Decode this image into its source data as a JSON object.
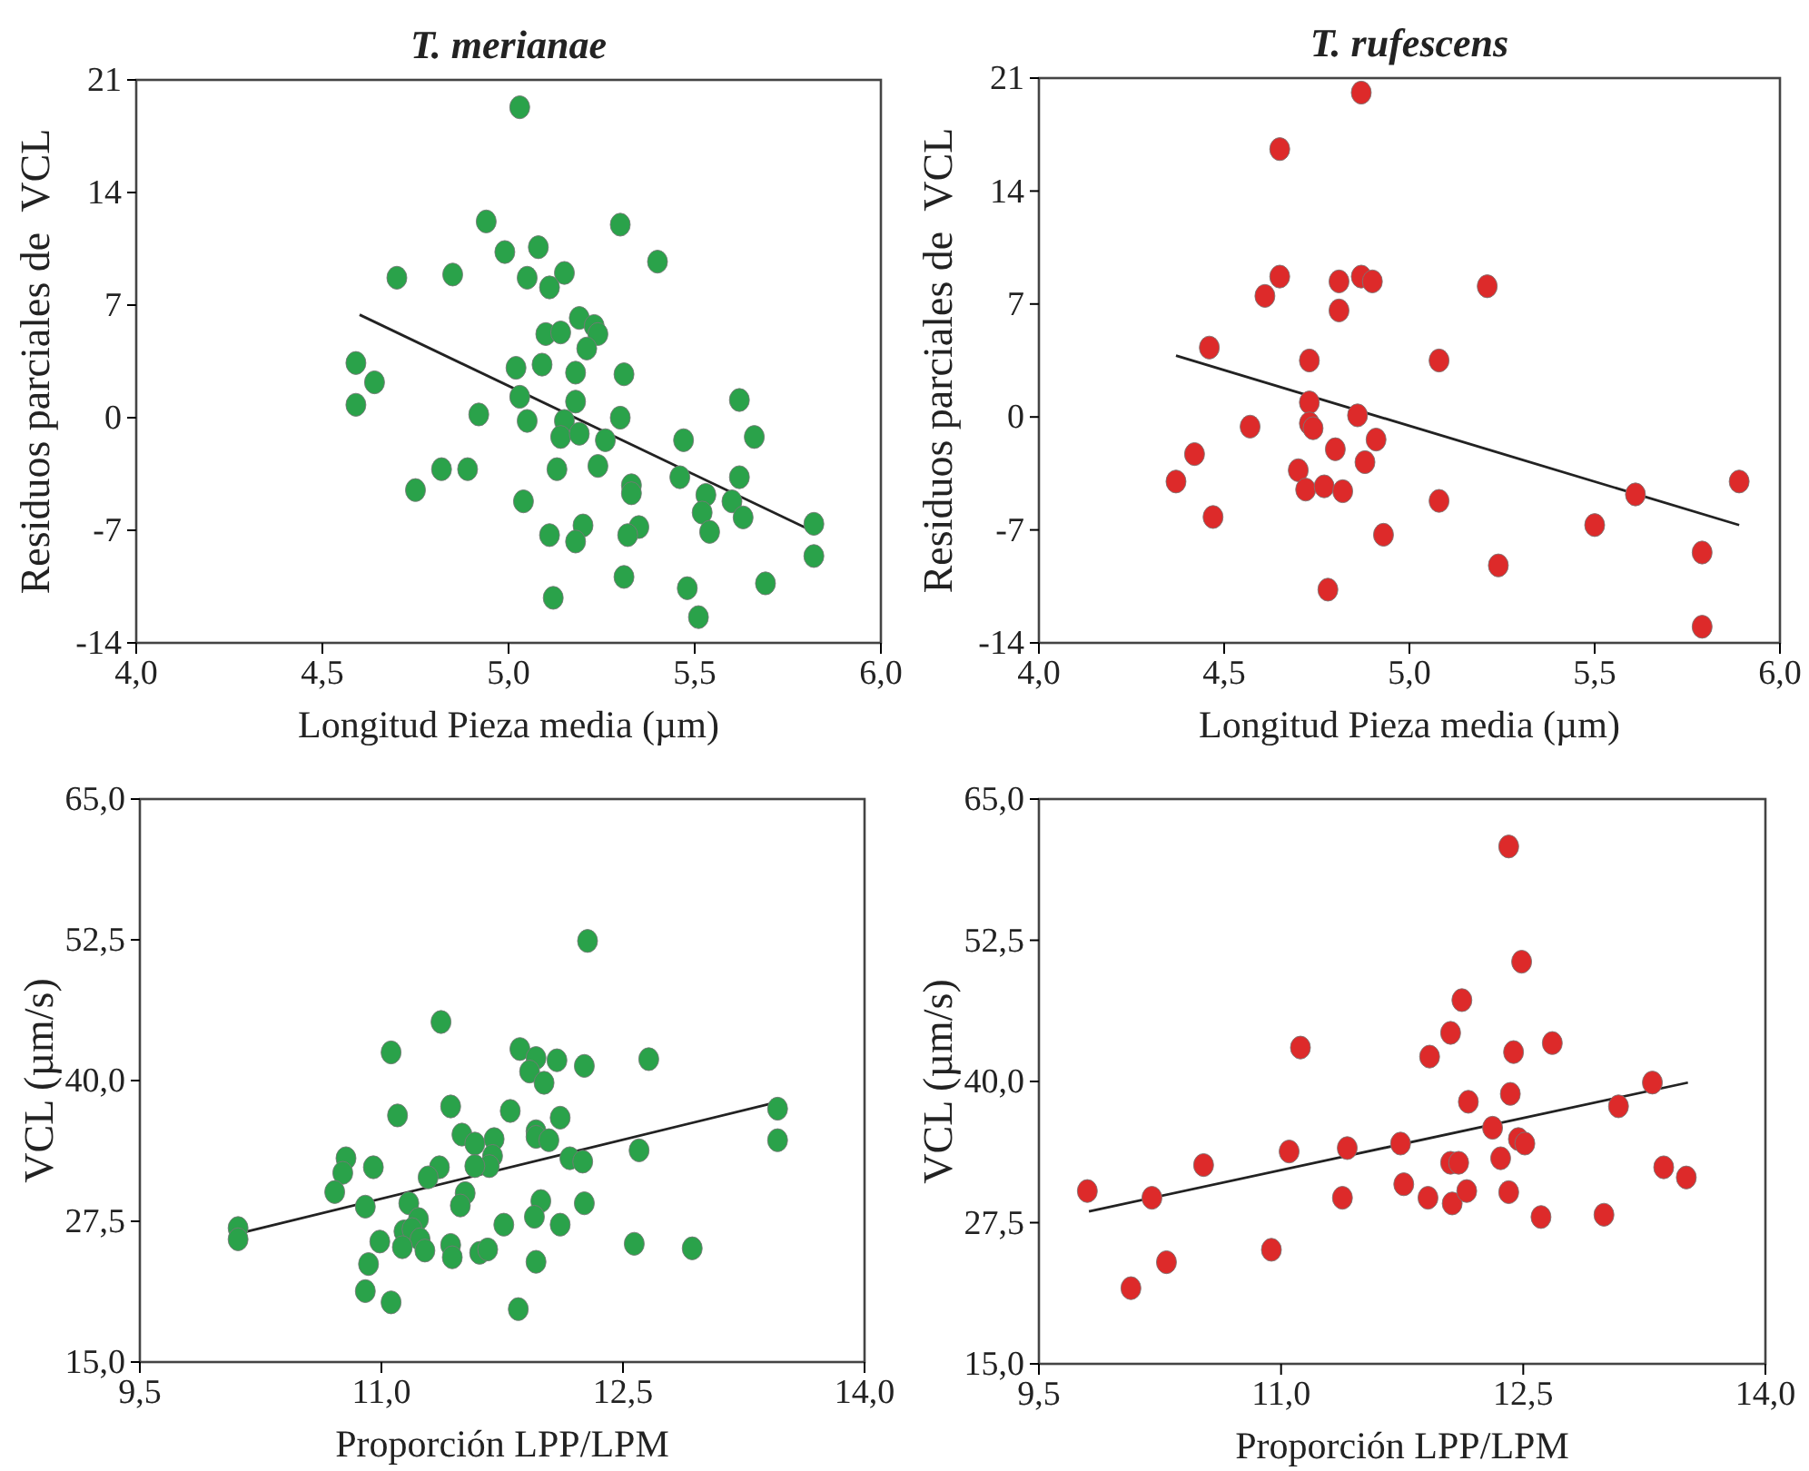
{
  "chart_data": [
    {
      "type": "scatter",
      "title": "T. merianae",
      "xlabel": "Longitud Pieza media (µm)",
      "ylabel": "Residuos parciales de  VCL",
      "xlim": [
        4,
        6
      ],
      "xticks": [
        {
          "value": 4,
          "label": "4,0"
        },
        {
          "value": 4.5,
          "label": "4,5"
        },
        {
          "value": 5,
          "label": "5,0"
        },
        {
          "value": 5.5,
          "label": "5,5"
        },
        {
          "value": 6,
          "label": "6,0"
        }
      ],
      "ylim": [
        -14,
        21
      ],
      "yticks": [
        -14,
        -7,
        0,
        7,
        14,
        21
      ],
      "series": [
        {
          "marker": "circle",
          "color": "#2aa24a",
          "x": [
            5.03,
            4.94,
            5.3,
            4.99,
            5.08,
            5.4,
            4.7,
            4.85,
            5.05,
            5.15,
            5.11,
            5.19,
            5.23,
            5.24,
            5.1,
            5.14,
            5.21,
            4.59,
            4.64,
            4.59,
            5.02,
            5.09,
            5.18,
            5.31,
            5.03,
            5.18,
            4.92,
            5.05,
            5.15,
            5.3,
            5.14,
            5.19,
            5.26,
            5.62,
            5.66,
            5.47,
            4.82,
            4.89,
            5.13,
            5.24,
            5.46,
            5.62,
            4.75,
            5.33,
            5.33,
            5.53,
            5.6,
            5.52,
            5.63,
            5.04,
            5.2,
            5.35,
            5.32,
            5.11,
            5.18,
            5.54,
            5.82,
            5.82,
            5.31,
            5.48,
            5.69,
            5.12,
            5.51
          ],
          "values": [
            19.3,
            12.2,
            12.0,
            10.3,
            10.6,
            9.7,
            8.7,
            8.9,
            8.7,
            9.0,
            8.1,
            6.2,
            5.7,
            5.2,
            5.2,
            5.3,
            4.3,
            3.4,
            2.2,
            0.8,
            3.1,
            3.3,
            2.8,
            2.7,
            1.3,
            1.0,
            0.2,
            -0.2,
            -0.2,
            0.0,
            -1.2,
            -1.0,
            -1.4,
            1.1,
            -1.2,
            -1.4,
            -3.2,
            -3.2,
            -3.2,
            -3.0,
            -3.7,
            -3.7,
            -4.5,
            -4.2,
            -4.7,
            -4.8,
            -5.2,
            -5.9,
            -6.2,
            -5.2,
            -6.7,
            -6.8,
            -7.3,
            -7.3,
            -7.7,
            -7.1,
            -6.6,
            -8.6,
            -9.9,
            -10.6,
            -10.3,
            -11.2,
            -12.4
          ]
        },
        {
          "type": "line",
          "color": "#222222",
          "x": [
            4.6,
            5.83
          ],
          "values": [
            6.4,
            -7.2
          ]
        }
      ]
    },
    {
      "type": "scatter",
      "title": "T. rufescens",
      "xlabel": "Longitud Pieza media (µm)",
      "ylabel": "Residuos parciales de  VCL",
      "xlim": [
        4,
        6
      ],
      "xticks": [
        {
          "value": 4,
          "label": "4,0"
        },
        {
          "value": 4.5,
          "label": "4,5"
        },
        {
          "value": 5,
          "label": "5,0"
        },
        {
          "value": 5.5,
          "label": "5,5"
        },
        {
          "value": 6,
          "label": "6,0"
        }
      ],
      "ylim": [
        -14,
        21
      ],
      "yticks": [
        -14,
        -7,
        0,
        7,
        14,
        21
      ],
      "series": [
        {
          "marker": "circle",
          "color": "#dd2a2a",
          "x": [
            4.87,
            4.65,
            4.65,
            4.61,
            4.81,
            4.87,
            4.9,
            4.81,
            5.21,
            4.46,
            4.73,
            5.08,
            4.73,
            4.86,
            4.57,
            4.73,
            4.74,
            4.91,
            4.8,
            4.88,
            4.42,
            4.37,
            4.7,
            4.72,
            4.77,
            4.82,
            5.08,
            5.61,
            5.89,
            4.47,
            4.93,
            5.5,
            5.24,
            5.79,
            4.78,
            5.79
          ],
          "values": [
            20.1,
            16.6,
            8.7,
            7.5,
            8.4,
            8.7,
            8.4,
            6.6,
            8.1,
            4.3,
            3.5,
            3.5,
            0.9,
            0.1,
            -0.6,
            -0.4,
            -0.7,
            -1.4,
            -2.0,
            -2.8,
            -2.3,
            -4.0,
            -3.3,
            -4.5,
            -4.3,
            -4.6,
            -5.2,
            -4.8,
            -4.0,
            -6.2,
            -7.3,
            -6.7,
            -9.2,
            -8.4,
            -10.7,
            -13.0
          ]
        },
        {
          "type": "line",
          "color": "#222222",
          "x": [
            4.37,
            5.89
          ],
          "values": [
            3.8,
            -6.7
          ]
        }
      ]
    },
    {
      "type": "scatter",
      "xlabel": "Proporción LPP/LPM",
      "ylabel": "VCL (µm/s)",
      "xlim": [
        9.5,
        14
      ],
      "xticks": [
        {
          "value": 9.5,
          "label": "9,5"
        },
        {
          "value": 11,
          "label": "11,0"
        },
        {
          "value": 12.5,
          "label": "12,5"
        },
        {
          "value": 14,
          "label": "14,0"
        }
      ],
      "ylim": [
        15,
        65
      ],
      "yticks": [
        {
          "value": 15,
          "label": "15,0"
        },
        {
          "value": 27.5,
          "label": "27,5"
        },
        {
          "value": 40,
          "label": "40,0"
        },
        {
          "value": 52.5,
          "label": "52,5"
        },
        {
          "value": 65,
          "label": "65,0"
        }
      ],
      "series": [
        {
          "marker": "circle",
          "color": "#2aa24a",
          "x": [
            10.11,
            10.11,
            12.28,
            11.37,
            11.06,
            11.86,
            11.96,
            12.09,
            11.92,
            12.01,
            12.26,
            12.66,
            13.46,
            13.46,
            11.1,
            11.43,
            11.8,
            12.11,
            11.5,
            11.58,
            11.7,
            11.69,
            11.67,
            11.58,
            11.96,
            11.96,
            12.04,
            12.17,
            12.25,
            12.6,
            10.78,
            10.76,
            10.95,
            10.71,
            11.36,
            11.29,
            11.52,
            11.49,
            10.9,
            11.17,
            11.99,
            11.95,
            12.26,
            11.76,
            12.11,
            11.23,
            11.14,
            11.19,
            11.24,
            11.13,
            10.99,
            11.27,
            11.43,
            11.44,
            11.61,
            11.66,
            12.57,
            12.93,
            10.92,
            11.96,
            10.9,
            11.06,
            11.85
          ],
          "values": [
            26.9,
            25.9,
            52.4,
            45.2,
            42.5,
            42.8,
            42.0,
            41.8,
            40.8,
            39.8,
            41.3,
            41.9,
            37.5,
            34.7,
            36.9,
            37.7,
            37.3,
            36.7,
            35.2,
            34.4,
            34.8,
            33.3,
            32.4,
            32.4,
            35.5,
            35.0,
            34.7,
            33.1,
            32.8,
            33.8,
            33.1,
            31.8,
            32.3,
            30.1,
            32.3,
            31.4,
            30.0,
            28.9,
            28.8,
            29.1,
            29.3,
            27.9,
            29.1,
            27.2,
            27.2,
            27.7,
            26.6,
            26.8,
            25.9,
            25.2,
            25.7,
            24.9,
            25.4,
            24.3,
            24.7,
            25.0,
            25.5,
            25.1,
            23.7,
            23.9,
            21.3,
            20.3,
            19.7
          ]
        },
        {
          "type": "line",
          "color": "#222222",
          "x": [
            10.11,
            13.46
          ],
          "values": [
            26.4,
            38.1
          ]
        }
      ]
    },
    {
      "type": "scatter",
      "xlabel": "Proporción LPP/LPM",
      "ylabel": "VCL (µm/s)",
      "xlim": [
        9.5,
        14
      ],
      "xticks": [
        {
          "value": 9.5,
          "label": "9,5"
        },
        {
          "value": 11,
          "label": "11,0"
        },
        {
          "value": 12.5,
          "label": "12,5"
        },
        {
          "value": 14,
          "label": "14,0"
        }
      ],
      "ylim": [
        15,
        65
      ],
      "yticks": [
        {
          "value": 15,
          "label": "15,0"
        },
        {
          "value": 27.5,
          "label": "27,5"
        },
        {
          "value": 40,
          "label": "40,0"
        },
        {
          "value": 52.5,
          "label": "52,5"
        },
        {
          "value": 65,
          "label": "65,0"
        }
      ],
      "series": [
        {
          "marker": "circle",
          "color": "#dd2a2a",
          "x": [
            9.8,
            10.07,
            10.2,
            10.29,
            10.52,
            10.94,
            11.05,
            11.12,
            11.38,
            11.41,
            11.74,
            11.76,
            11.92,
            11.91,
            12.05,
            12.12,
            12.16,
            12.05,
            12.1,
            12.06,
            12.15,
            12.31,
            12.36,
            12.41,
            12.49,
            12.44,
            12.42,
            12.47,
            12.51,
            12.41,
            12.61,
            12.68,
            13.0,
            13.09,
            13.3,
            13.37,
            13.51
          ],
          "values": [
            30.3,
            21.7,
            29.7,
            24.0,
            32.6,
            25.1,
            33.8,
            43.0,
            29.7,
            34.1,
            34.5,
            30.9,
            42.2,
            29.7,
            44.3,
            47.2,
            38.2,
            32.8,
            32.8,
            29.2,
            30.3,
            35.9,
            33.2,
            60.8,
            50.6,
            42.6,
            38.9,
            34.9,
            34.5,
            30.2,
            28.0,
            43.4,
            28.2,
            37.8,
            39.9,
            32.4,
            31.5
          ]
        },
        {
          "type": "line",
          "color": "#222222",
          "x": [
            9.81,
            13.52
          ],
          "values": [
            28.5,
            39.9
          ]
        }
      ]
    }
  ]
}
